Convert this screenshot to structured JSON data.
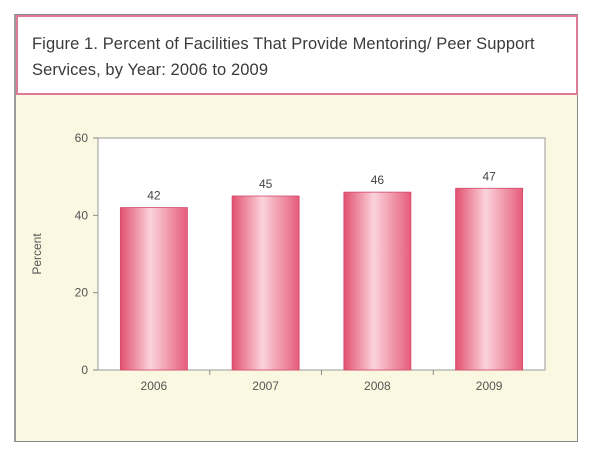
{
  "figure": {
    "title": "Figure 1. Percent of Facilities That Provide Mentoring/ Peer Support Services, by Year: 2006 to 2009"
  },
  "chart_data": {
    "type": "bar",
    "title": "Figure 1. Percent of Facilities That Provide Mentoring/ Peer Support Services, by Year: 2006 to 2009",
    "categories": [
      "2006",
      "2007",
      "2008",
      "2009"
    ],
    "values": [
      42,
      45,
      46,
      47
    ],
    "data_labels": [
      "42",
      "45",
      "46",
      "47"
    ],
    "xlabel": "",
    "ylabel": "Percent",
    "ylim": [
      0,
      60
    ],
    "yticks": [
      0,
      20,
      40,
      60
    ],
    "grid": false,
    "legend": "none",
    "colors": {
      "bar_fill": "#ee6f8b",
      "bar_highlight": "#fbd3dc",
      "bar_edge": "#d24a68",
      "plot_background": "#ffffff",
      "figure_background": "#fbf8e2",
      "title_border": "#e07b97",
      "axis": "#8a8a8a"
    }
  }
}
